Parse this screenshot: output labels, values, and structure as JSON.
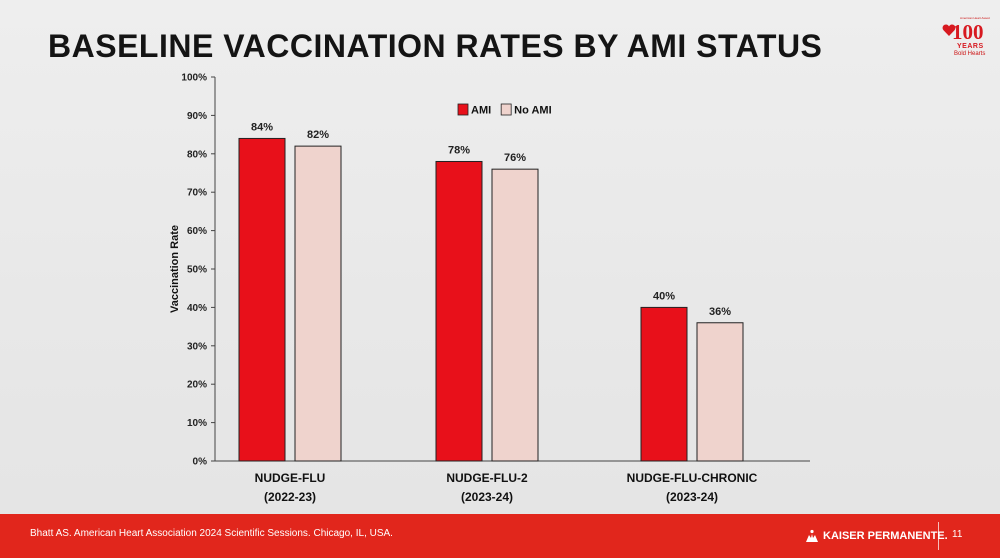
{
  "slide": {
    "title": "BASELINE VACCINATION RATES BY AMI STATUS",
    "logo": {
      "org": "American Heart Association",
      "number": "100",
      "years": "YEARS",
      "tagline": "Bold Hearts"
    },
    "footer": {
      "citation": "Bhatt AS. American Heart Association 2024 Scientific Sessions. Chicago, IL, USA.",
      "brand": "KAISER PERMANENTE.",
      "page_number": "11"
    }
  },
  "chart_data": {
    "type": "bar",
    "title": "",
    "ylabel": "Vaccination Rate",
    "xlabel": "",
    "ylim": [
      0,
      100
    ],
    "yticks": [
      "0%",
      "10%",
      "20%",
      "30%",
      "40%",
      "50%",
      "60%",
      "70%",
      "80%",
      "90%",
      "100%"
    ],
    "categories": [
      {
        "line1": "NUDGE-FLU",
        "line2": "(2022-23)"
      },
      {
        "line1": "NUDGE-FLU-2",
        "line2": "(2023-24)"
      },
      {
        "line1": "NUDGE-FLU-CHRONIC",
        "line2": "(2023-24)"
      }
    ],
    "series": [
      {
        "name": "AMI",
        "color": "#e8101a",
        "values": [
          84,
          78,
          40
        ],
        "labels": [
          "84%",
          "78%",
          "40%"
        ]
      },
      {
        "name": "No AMI",
        "color": "#efd3cd",
        "values": [
          82,
          76,
          36
        ],
        "labels": [
          "82%",
          "76%",
          "36%"
        ]
      }
    ],
    "legend_position": "top-center",
    "grid": false
  }
}
